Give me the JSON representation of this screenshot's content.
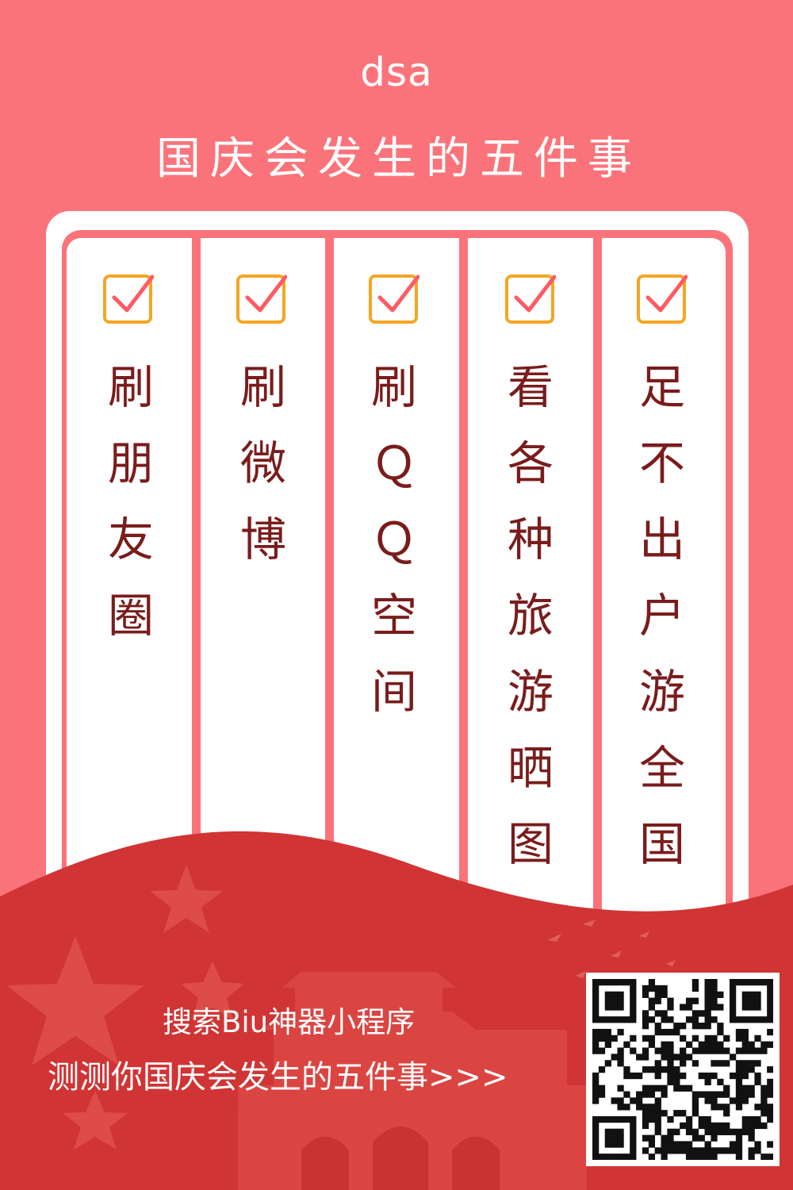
{
  "header": {
    "username": "dsa",
    "title": "国庆会发生的五件事"
  },
  "items": [
    {
      "text": "刷朋友圈",
      "checked": true
    },
    {
      "text": "刷微博",
      "checked": true
    },
    {
      "text": "刷ＱＱ空间",
      "checked": true
    },
    {
      "text": "看各种旅游晒图",
      "checked": true
    },
    {
      "text": "足不出户游全国",
      "checked": true
    }
  ],
  "footer": {
    "line1": "搜索Biu神器小程序",
    "line2": "测测你国庆会发生的五件事>>>"
  },
  "colors": {
    "background": "#fb737a",
    "text_dark": "#7a1c1c",
    "checkbox_border": "#f5a623",
    "checkmark": "#ff5a64",
    "footer_red": "#d03434"
  },
  "icons": {
    "checkbox": "checkbox-checked-icon",
    "qr": "qr-code-icon"
  }
}
